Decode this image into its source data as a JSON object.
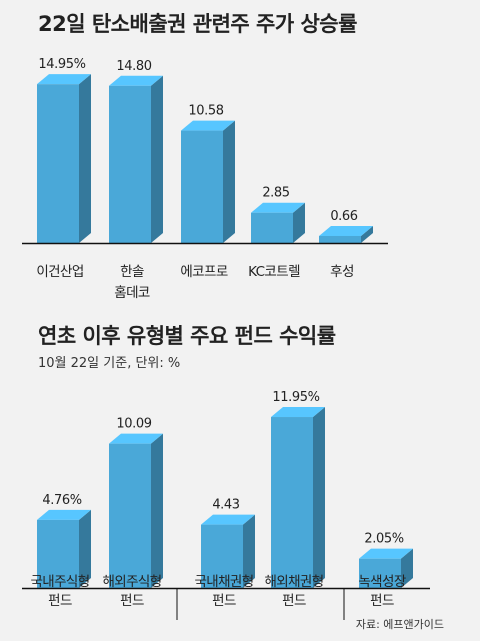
{
  "chart_data": [
    {
      "type": "bar",
      "title": "22일 탄소배출권 관련주 주가 상승률",
      "categories": [
        [
          "이건산업"
        ],
        [
          "한솔",
          "홈데코"
        ],
        [
          "에코프로"
        ],
        [
          "KC코트렐"
        ],
        [
          "후성"
        ]
      ],
      "values": [
        14.95,
        14.8,
        10.58,
        2.85,
        0.66
      ],
      "value_labels": [
        "14.95%",
        "14.80",
        "10.58",
        "2.85",
        "0.66"
      ],
      "ylim": [
        0,
        16
      ],
      "grid": false,
      "bar_color": "#4aa8d8"
    },
    {
      "type": "bar",
      "title": "연초 이후 유형별 주요 펀드 수익률",
      "subtitle": "10월 22일 기준, 단위: %",
      "categories": [
        [
          "국내주식형",
          "펀드"
        ],
        [
          "해외주식형",
          "펀드"
        ],
        [
          "국내채권형",
          "펀드"
        ],
        [
          "해외채권형",
          "펀드"
        ],
        [
          "녹색성장",
          "펀드"
        ]
      ],
      "values": [
        4.76,
        10.09,
        4.43,
        11.95,
        2.05
      ],
      "value_labels": [
        "4.76%",
        "10.09",
        "4.43",
        "11.95%",
        "2.05%"
      ],
      "ylim": [
        0,
        13
      ],
      "grid": false,
      "bar_color": "#4aa8d8"
    }
  ],
  "source": "자료: 에프앤가이드"
}
